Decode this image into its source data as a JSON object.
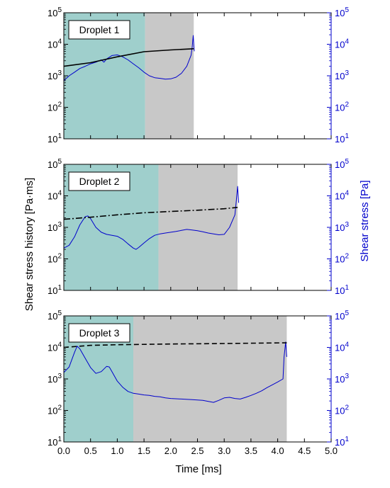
{
  "colors": {
    "shear_stress_history": "#000000",
    "shear_stress": "#0000cc",
    "phase_one_region": "#9fcfcc",
    "phase_two_region": "#c8c8c8",
    "right_axis": "#0000cc"
  },
  "labels": {
    "left_axis": "Shear stress history [Pa·ms]",
    "right_axis": "Shear stress [Pa]",
    "x_axis": "Time [ms]"
  },
  "chart_data": {
    "type": "line",
    "layout": "three vertically stacked panels sharing the time axis",
    "xlabel": "Time [ms]",
    "xlim": [
      0,
      5
    ],
    "x_ticks": [
      "0.0",
      "0.5",
      "1.0",
      "1.5",
      "2.0",
      "2.5",
      "3.0",
      "3.5",
      "4.0",
      "4.5",
      "5.0"
    ],
    "ylabel_left": "Shear stress history [Pa·ms]",
    "ylabel_right": "Shear stress [Pa]",
    "yscale": "log",
    "ylim": [
      10,
      100000
    ],
    "y_tick_base": "10",
    "y_tick_exponents": [
      "1",
      "2",
      "3",
      "4",
      "5"
    ],
    "legend_position": "top-left inside each panel",
    "grid": false,
    "panels": [
      {
        "label": "Droplet 1",
        "regions": [
          {
            "from": 0,
            "to": 1.52,
            "color": "#9fcfcc"
          },
          {
            "from": 1.52,
            "to": 2.43,
            "color": "#c8c8c8"
          }
        ],
        "history": {
          "style": "solid",
          "points": [
            [
              0.0,
              2000
            ],
            [
              0.5,
              2600
            ],
            [
              1.0,
              4000
            ],
            [
              1.5,
              5800
            ],
            [
              2.0,
              6600
            ],
            [
              2.43,
              7200
            ]
          ]
        },
        "stress": {
          "points": [
            [
              0.0,
              700
            ],
            [
              0.1,
              1000
            ],
            [
              0.2,
              1300
            ],
            [
              0.3,
              1700
            ],
            [
              0.4,
              2000
            ],
            [
              0.5,
              2400
            ],
            [
              0.6,
              2700
            ],
            [
              0.7,
              3200
            ],
            [
              0.75,
              2700
            ],
            [
              0.8,
              3400
            ],
            [
              0.9,
              4400
            ],
            [
              1.0,
              4600
            ],
            [
              1.1,
              4000
            ],
            [
              1.2,
              3200
            ],
            [
              1.3,
              2400
            ],
            [
              1.4,
              1800
            ],
            [
              1.5,
              1300
            ],
            [
              1.6,
              1000
            ],
            [
              1.7,
              870
            ],
            [
              1.8,
              830
            ],
            [
              1.9,
              780
            ],
            [
              2.0,
              800
            ],
            [
              2.1,
              900
            ],
            [
              2.2,
              1200
            ],
            [
              2.3,
              2000
            ],
            [
              2.38,
              4500
            ],
            [
              2.4,
              8000
            ],
            [
              2.42,
              19000
            ],
            [
              2.44,
              6000
            ]
          ]
        }
      },
      {
        "label": "Droplet 2",
        "regions": [
          {
            "from": 0,
            "to": 1.77,
            "color": "#9fcfcc"
          },
          {
            "from": 1.77,
            "to": 3.25,
            "color": "#c8c8c8"
          }
        ],
        "history": {
          "style": "dash-dot",
          "points": [
            [
              0.0,
              1800
            ],
            [
              0.5,
              2100
            ],
            [
              1.0,
              2500
            ],
            [
              1.5,
              2900
            ],
            [
              2.0,
              3200
            ],
            [
              2.5,
              3500
            ],
            [
              3.0,
              3900
            ],
            [
              3.25,
              4300
            ]
          ]
        },
        "stress": {
          "points": [
            [
              0.0,
              220
            ],
            [
              0.1,
              270
            ],
            [
              0.2,
              500
            ],
            [
              0.3,
              1200
            ],
            [
              0.4,
              2200
            ],
            [
              0.45,
              2300
            ],
            [
              0.5,
              1900
            ],
            [
              0.6,
              1000
            ],
            [
              0.7,
              700
            ],
            [
              0.8,
              600
            ],
            [
              0.9,
              560
            ],
            [
              1.0,
              520
            ],
            [
              1.1,
              420
            ],
            [
              1.2,
              300
            ],
            [
              1.3,
              220
            ],
            [
              1.35,
              200
            ],
            [
              1.4,
              230
            ],
            [
              1.5,
              320
            ],
            [
              1.6,
              440
            ],
            [
              1.7,
              560
            ],
            [
              1.8,
              620
            ],
            [
              1.9,
              660
            ],
            [
              2.0,
              700
            ],
            [
              2.1,
              740
            ],
            [
              2.2,
              800
            ],
            [
              2.3,
              860
            ],
            [
              2.4,
              820
            ],
            [
              2.5,
              780
            ],
            [
              2.6,
              720
            ],
            [
              2.7,
              660
            ],
            [
              2.8,
              620
            ],
            [
              2.9,
              580
            ],
            [
              3.0,
              600
            ],
            [
              3.1,
              1000
            ],
            [
              3.2,
              2500
            ],
            [
              3.23,
              8000
            ],
            [
              3.25,
              20000
            ],
            [
              3.27,
              6000
            ]
          ]
        }
      },
      {
        "label": "Droplet 3",
        "regions": [
          {
            "from": 0,
            "to": 1.3,
            "color": "#9fcfcc"
          },
          {
            "from": 1.3,
            "to": 4.17,
            "color": "#c8c8c8"
          }
        ],
        "history": {
          "style": "dashed",
          "points": [
            [
              0.0,
              10000
            ],
            [
              0.5,
              11600
            ],
            [
              1.0,
              12200
            ],
            [
              2.0,
              12800
            ],
            [
              3.0,
              13300
            ],
            [
              4.17,
              14000
            ]
          ]
        },
        "stress": {
          "points": [
            [
              0.0,
              1600
            ],
            [
              0.1,
              2400
            ],
            [
              0.2,
              7000
            ],
            [
              0.25,
              11000
            ],
            [
              0.3,
              9000
            ],
            [
              0.4,
              4500
            ],
            [
              0.5,
              2300
            ],
            [
              0.6,
              1500
            ],
            [
              0.7,
              1700
            ],
            [
              0.8,
              2500
            ],
            [
              0.85,
              2400
            ],
            [
              0.9,
              1700
            ],
            [
              1.0,
              850
            ],
            [
              1.1,
              550
            ],
            [
              1.2,
              400
            ],
            [
              1.3,
              350
            ],
            [
              1.4,
              330
            ],
            [
              1.5,
              310
            ],
            [
              1.6,
              300
            ],
            [
              1.7,
              280
            ],
            [
              1.8,
              270
            ],
            [
              1.9,
              250
            ],
            [
              2.0,
              240
            ],
            [
              2.2,
              230
            ],
            [
              2.4,
              220
            ],
            [
              2.6,
              210
            ],
            [
              2.8,
              180
            ],
            [
              2.9,
              210
            ],
            [
              3.0,
              250
            ],
            [
              3.1,
              260
            ],
            [
              3.2,
              240
            ],
            [
              3.3,
              230
            ],
            [
              3.4,
              260
            ],
            [
              3.5,
              300
            ],
            [
              3.6,
              350
            ],
            [
              3.7,
              420
            ],
            [
              3.8,
              530
            ],
            [
              3.9,
              650
            ],
            [
              4.0,
              800
            ],
            [
              4.1,
              1000
            ],
            [
              4.12,
              5000
            ],
            [
              4.15,
              15000
            ],
            [
              4.17,
              5000
            ]
          ]
        }
      }
    ]
  }
}
